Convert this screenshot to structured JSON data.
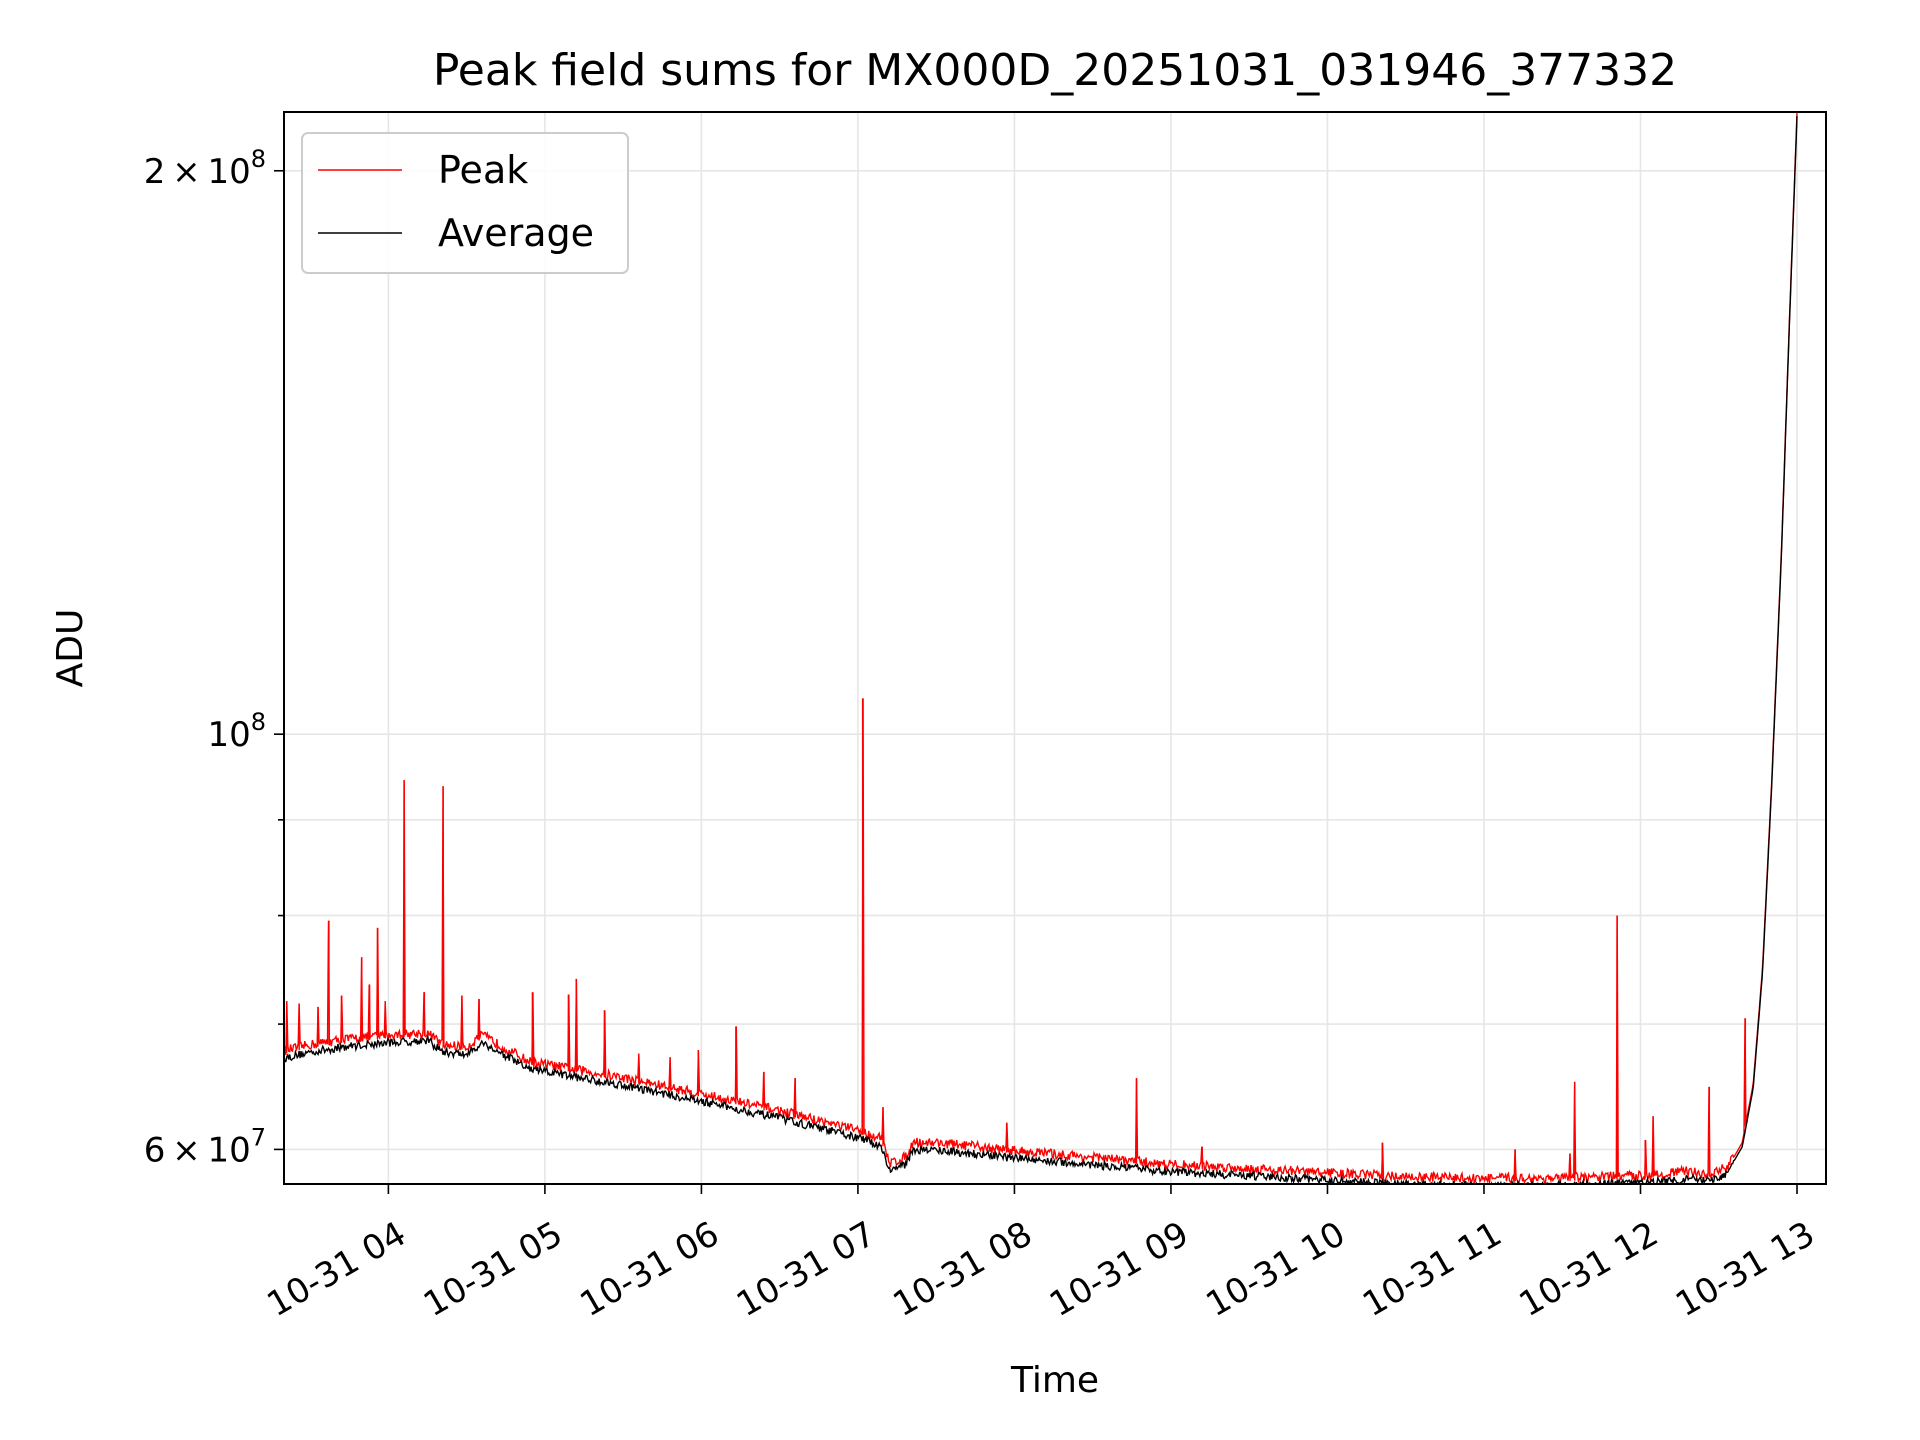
{
  "chart_data": {
    "type": "line",
    "title": "Peak field sums for MX000D_20251031_031946_377332",
    "xlabel": "Time",
    "ylabel": "ADU",
    "yscale": "log",
    "ylim": [
      57500000,
      215000000
    ],
    "xlim_hours": [
      3.333,
      13.0
    ],
    "grid": true,
    "legend_position": "upper left",
    "x_ticks": [
      {
        "hour": 4,
        "label": "10-31 04"
      },
      {
        "hour": 5,
        "label": "10-31 05"
      },
      {
        "hour": 6,
        "label": "10-31 06"
      },
      {
        "hour": 7,
        "label": "10-31 07"
      },
      {
        "hour": 8,
        "label": "10-31 08"
      },
      {
        "hour": 9,
        "label": "10-31 09"
      },
      {
        "hour": 10,
        "label": "10-31 10"
      },
      {
        "hour": 11,
        "label": "10-31 11"
      },
      {
        "hour": 12,
        "label": "10-31 12"
      },
      {
        "hour": 13,
        "label": "10-31 13"
      }
    ],
    "y_major_ticks": [
      {
        "value": 60000000,
        "base": "6",
        "times": "×",
        "pow_base": "10",
        "exp": "7"
      },
      {
        "value": 100000000,
        "base": "",
        "times": "",
        "pow_base": "10",
        "exp": "8"
      },
      {
        "value": 200000000,
        "base": "2",
        "times": "×",
        "pow_base": "10",
        "exp": "8"
      }
    ],
    "y_minor_ticks": [
      70000000,
      80000000,
      90000000
    ],
    "series": [
      {
        "name": "Peak",
        "color": "#ff0000",
        "baseline": [
          {
            "hour": 3.333,
            "value": 67500000
          },
          {
            "hour": 3.5,
            "value": 68000000
          },
          {
            "hour": 3.75,
            "value": 68500000
          },
          {
            "hour": 4.0,
            "value": 68800000
          },
          {
            "hour": 4.25,
            "value": 69000000
          },
          {
            "hour": 4.35,
            "value": 68000000
          },
          {
            "hour": 4.5,
            "value": 67800000
          },
          {
            "hour": 4.6,
            "value": 68800000
          },
          {
            "hour": 4.9,
            "value": 66600000
          },
          {
            "hour": 5.5,
            "value": 65300000
          },
          {
            "hour": 6.0,
            "value": 64000000
          },
          {
            "hour": 6.5,
            "value": 62700000
          },
          {
            "hour": 7.0,
            "value": 61200000
          },
          {
            "hour": 7.15,
            "value": 60600000
          },
          {
            "hour": 7.2,
            "value": 58800000
          },
          {
            "hour": 7.3,
            "value": 59200000
          },
          {
            "hour": 7.35,
            "value": 60300000
          },
          {
            "hour": 7.5,
            "value": 60300000
          },
          {
            "hour": 8.0,
            "value": 59700000
          },
          {
            "hour": 9.0,
            "value": 58700000
          },
          {
            "hour": 10.0,
            "value": 58100000
          },
          {
            "hour": 10.5,
            "value": 57800000
          },
          {
            "hour": 11.0,
            "value": 57700000
          },
          {
            "hour": 11.5,
            "value": 57700000
          },
          {
            "hour": 12.0,
            "value": 57900000
          },
          {
            "hour": 12.3,
            "value": 58200000
          },
          {
            "hour": 12.45,
            "value": 58000000
          },
          {
            "hour": 12.55,
            "value": 58500000
          },
          {
            "hour": 12.65,
            "value": 60500000
          },
          {
            "hour": 12.72,
            "value": 65000000
          },
          {
            "hour": 12.78,
            "value": 75000000
          },
          {
            "hour": 12.84,
            "value": 95000000
          },
          {
            "hour": 12.9,
            "value": 125000000
          },
          {
            "hour": 12.95,
            "value": 165000000
          },
          {
            "hour": 13.0,
            "value": 215000000
          }
        ],
        "spikes": [
          {
            "hour": 3.35,
            "value": 72000000
          },
          {
            "hour": 3.43,
            "value": 71800000
          },
          {
            "hour": 3.55,
            "value": 71500000
          },
          {
            "hour": 3.62,
            "value": 79500000
          },
          {
            "hour": 3.7,
            "value": 72500000
          },
          {
            "hour": 3.83,
            "value": 76000000
          },
          {
            "hour": 3.88,
            "value": 73500000
          },
          {
            "hour": 3.93,
            "value": 78800000
          },
          {
            "hour": 3.98,
            "value": 72000000
          },
          {
            "hour": 4.1,
            "value": 94500000
          },
          {
            "hour": 4.23,
            "value": 72800000
          },
          {
            "hour": 4.35,
            "value": 93800000
          },
          {
            "hour": 4.47,
            "value": 72500000
          },
          {
            "hour": 4.58,
            "value": 72200000
          },
          {
            "hour": 4.92,
            "value": 72800000
          },
          {
            "hour": 5.15,
            "value": 72600000
          },
          {
            "hour": 5.2,
            "value": 74000000
          },
          {
            "hour": 5.38,
            "value": 71200000
          },
          {
            "hour": 5.6,
            "value": 67500000
          },
          {
            "hour": 5.8,
            "value": 67200000
          },
          {
            "hour": 5.98,
            "value": 67800000
          },
          {
            "hour": 6.22,
            "value": 69800000
          },
          {
            "hour": 6.4,
            "value": 66000000
          },
          {
            "hour": 6.6,
            "value": 65500000
          },
          {
            "hour": 7.03,
            "value": 104500000
          },
          {
            "hour": 7.16,
            "value": 63200000
          },
          {
            "hour": 7.95,
            "value": 62000000
          },
          {
            "hour": 8.78,
            "value": 65500000
          },
          {
            "hour": 9.2,
            "value": 60200000
          },
          {
            "hour": 10.35,
            "value": 60500000
          },
          {
            "hour": 11.2,
            "value": 60000000
          },
          {
            "hour": 11.55,
            "value": 59700000
          },
          {
            "hour": 11.58,
            "value": 65200000
          },
          {
            "hour": 11.85,
            "value": 80000000
          },
          {
            "hour": 12.03,
            "value": 60700000
          },
          {
            "hour": 12.08,
            "value": 62500000
          },
          {
            "hour": 12.44,
            "value": 64800000
          },
          {
            "hour": 12.67,
            "value": 70500000
          }
        ]
      },
      {
        "name": "Average",
        "color": "#000000",
        "baseline_from": "Peak",
        "offset_ratio": 0.995
      }
    ]
  }
}
